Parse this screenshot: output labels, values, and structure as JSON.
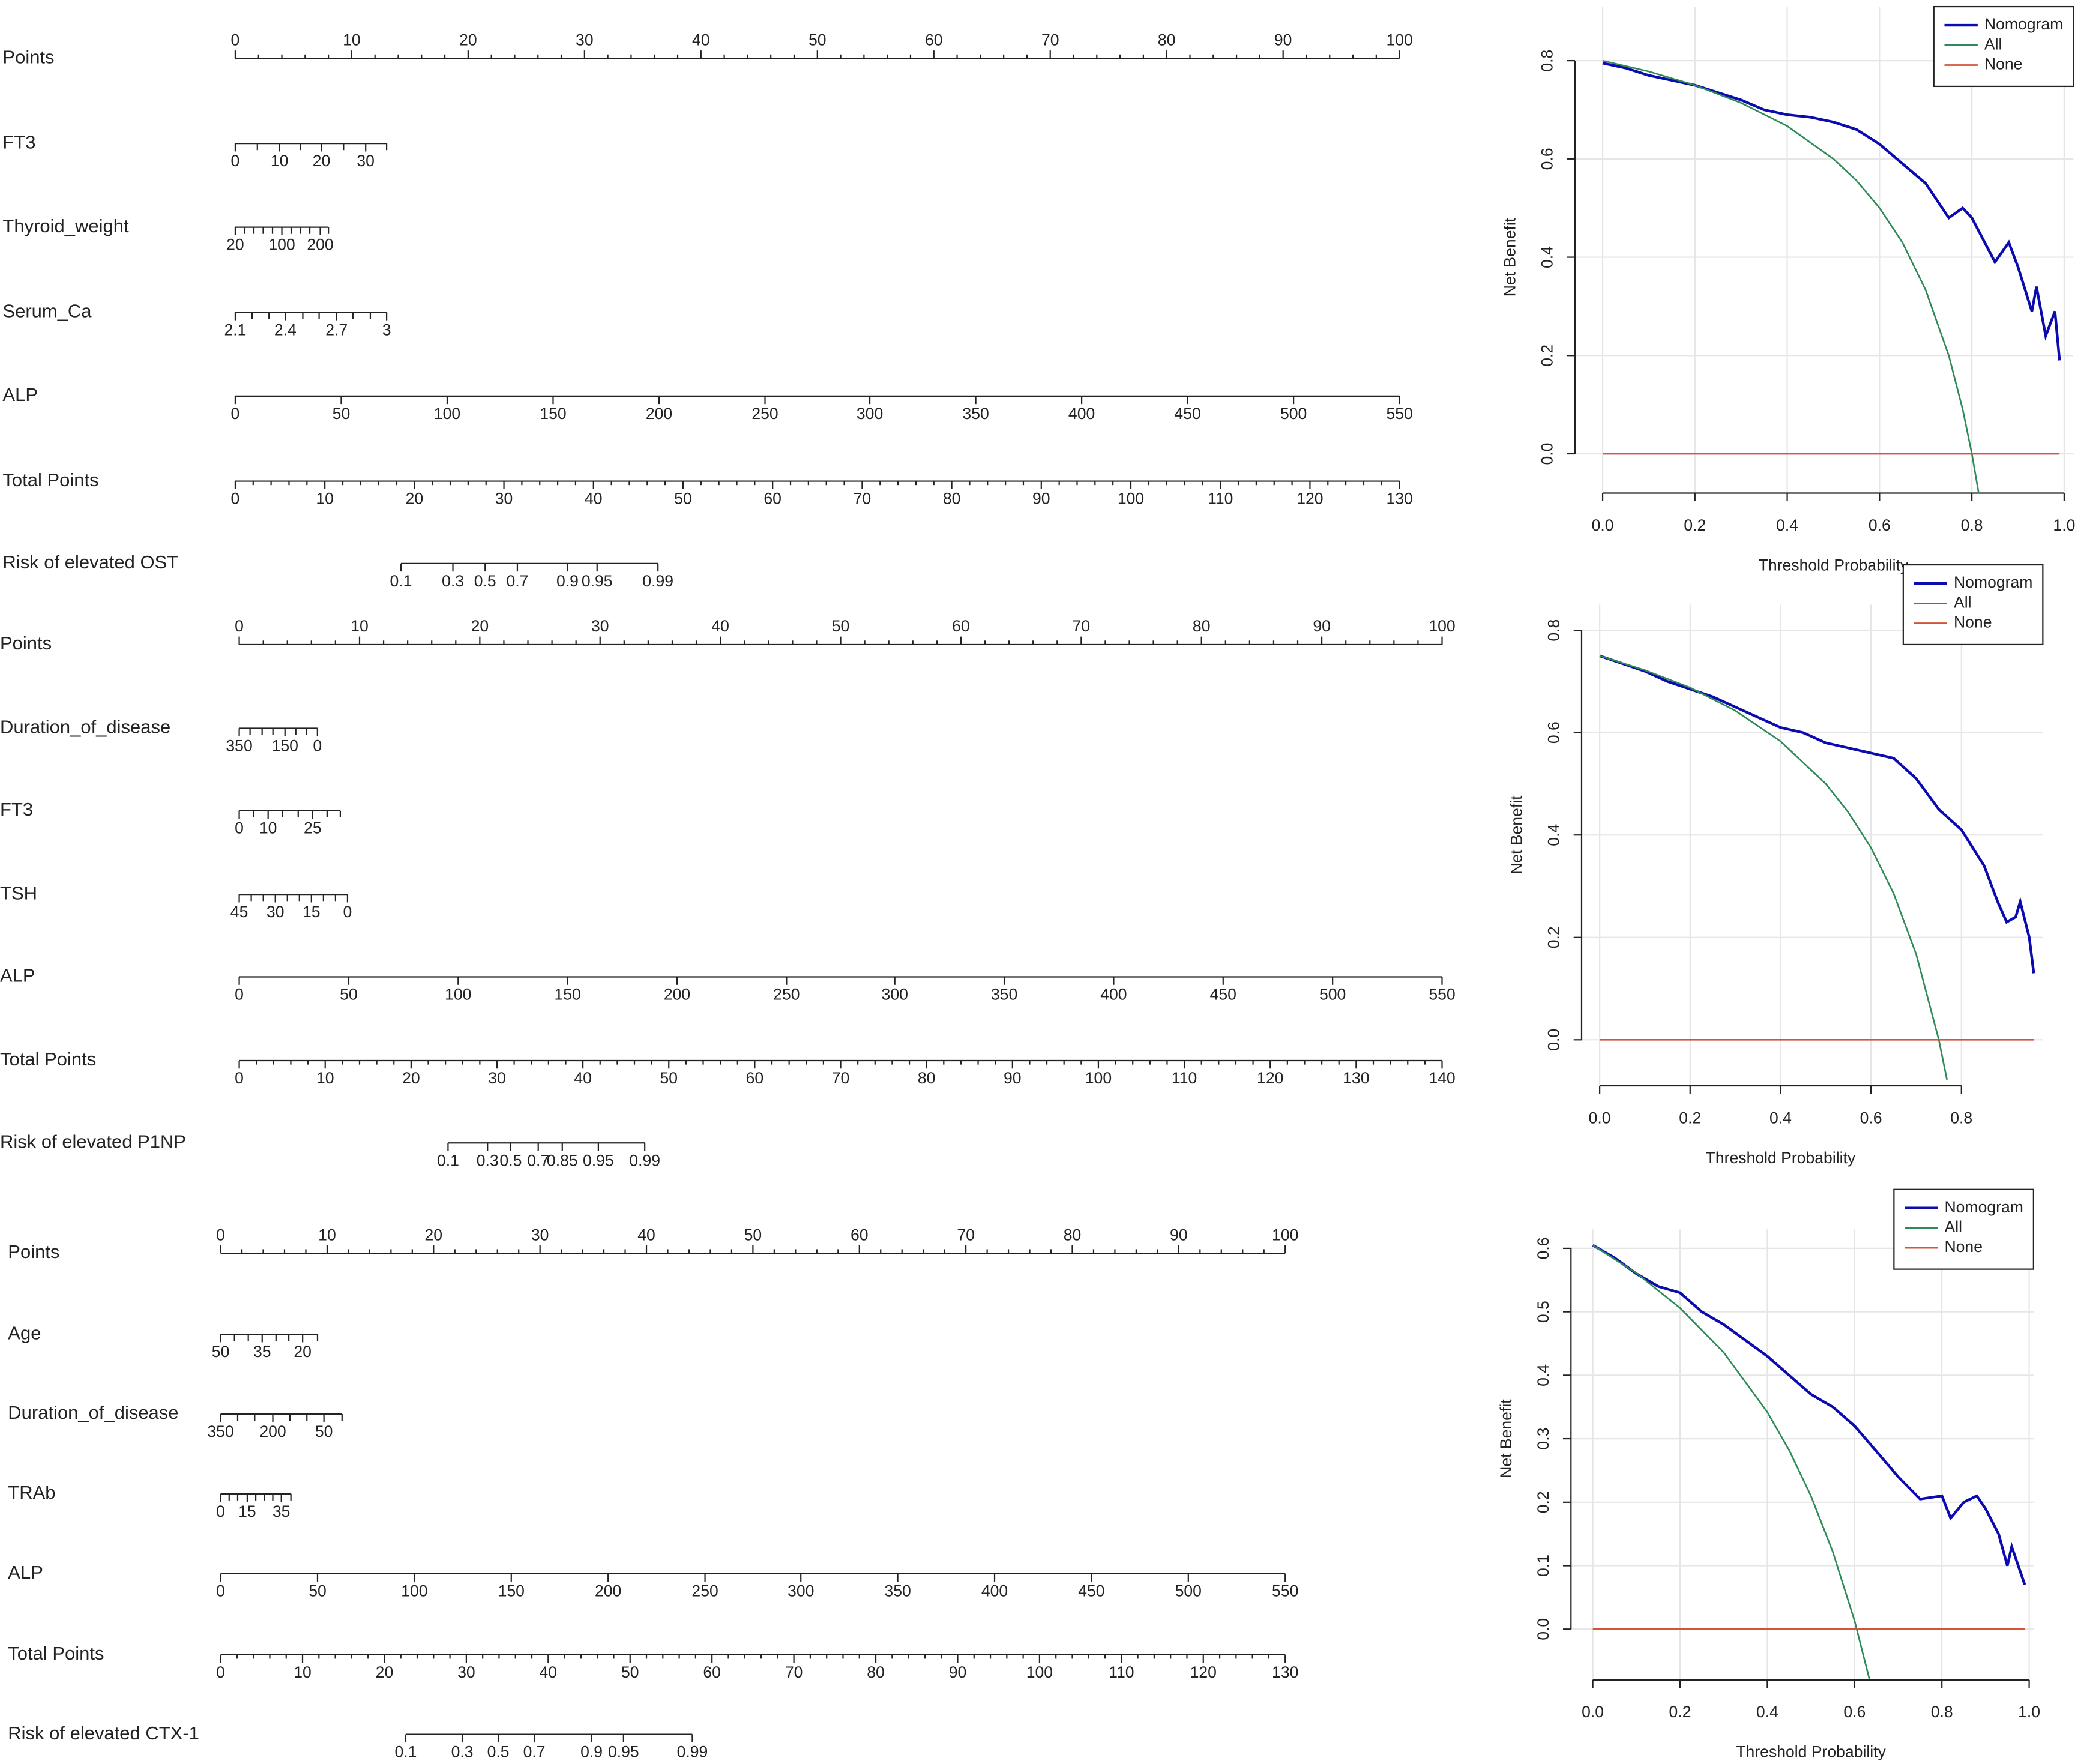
{
  "chart_data": [
    {
      "type": "nomogram",
      "rows": [
        {
          "label": "Points",
          "kind": "points",
          "xlim": [
            0,
            100
          ],
          "xticks": [
            0,
            10,
            20,
            30,
            40,
            50,
            60,
            70,
            80,
            90,
            100
          ],
          "minor_divisions": 5
        },
        {
          "label": "FT3",
          "kind": "variable",
          "ticks": [
            0,
            10,
            20,
            30
          ],
          "at": [
            0,
            3.8,
            7.4,
            11.2
          ],
          "minor_at": [
            1.9,
            5.6,
            9.3,
            13.0
          ]
        },
        {
          "label": "Thyroid_weight",
          "kind": "variable",
          "ticks": [
            20,
            100,
            200
          ],
          "at": [
            0,
            4.0,
            7.3
          ],
          "minor_at": [
            0.8,
            1.6,
            2.4,
            3.2,
            4.8,
            5.6,
            6.4,
            8.0
          ]
        },
        {
          "label": "Serum_Ca",
          "kind": "variable",
          "ticks": [
            2.1,
            2.4,
            2.7,
            3
          ],
          "at": [
            0,
            4.3,
            8.7,
            13.0
          ],
          "minor_at": [
            1.45,
            2.9,
            5.8,
            7.2,
            10.1,
            11.6
          ]
        },
        {
          "label": "ALP",
          "kind": "variable",
          "ticks": [
            0,
            50,
            100,
            150,
            200,
            250,
            300,
            350,
            400,
            450,
            500,
            550
          ],
          "at": [
            0,
            9.1,
            18.2,
            27.3,
            36.4,
            45.5,
            54.5,
            63.6,
            72.7,
            81.8,
            90.9,
            100
          ]
        },
        {
          "label": "Total Points",
          "kind": "total",
          "xlim": [
            0,
            130
          ],
          "xticks": [
            0,
            10,
            20,
            30,
            40,
            50,
            60,
            70,
            80,
            90,
            100,
            110,
            120,
            130
          ],
          "minor_divisions": 5
        },
        {
          "label": "Risk of elevated OST",
          "kind": "risk",
          "ticks": [
            0.1,
            0.3,
            0.5,
            0.7,
            0.9,
            0.95,
            0.99
          ],
          "at": [
            18.5,
            24.3,
            27.9,
            31.5,
            37.1,
            40.4,
            47.2
          ]
        }
      ]
    },
    {
      "type": "line",
      "xlabel": "Threshold Probability",
      "ylabel": "Net Benefit",
      "xlim": [
        -0.06,
        1.02
      ],
      "ylim": [
        -0.08,
        0.91
      ],
      "xticks": [
        {
          "value": 0,
          "label": "0.0"
        },
        0.2,
        0.4,
        0.6,
        0.8,
        {
          "value": 1,
          "label": "1.0"
        }
      ],
      "yticks": [
        {
          "value": 0,
          "label": "0.0"
        },
        0.2,
        0.4,
        0.6,
        0.8
      ],
      "grid": true,
      "legend": "top right",
      "series": [
        {
          "name": "Nomogram",
          "color": "#0b0bb0",
          "x": [
            0,
            0.05,
            0.1,
            0.15,
            0.2,
            0.25,
            0.3,
            0.35,
            0.4,
            0.45,
            0.5,
            0.55,
            0.6,
            0.65,
            0.7,
            0.75,
            0.78,
            0.8,
            0.85,
            0.88,
            0.9,
            0.93,
            0.94,
            0.96,
            0.98,
            0.99
          ],
          "values": [
            0.795,
            0.785,
            0.77,
            0.76,
            0.75,
            0.735,
            0.72,
            0.7,
            0.69,
            0.685,
            0.675,
            0.66,
            0.63,
            0.59,
            0.55,
            0.48,
            0.5,
            0.48,
            0.39,
            0.43,
            0.38,
            0.29,
            0.34,
            0.24,
            0.29,
            0.19
          ]
        },
        {
          "name": "All",
          "color": "#2e8b57",
          "x": [
            0,
            0.1,
            0.2,
            0.3,
            0.4,
            0.5,
            0.55,
            0.6,
            0.65,
            0.7,
            0.75,
            0.78,
            0.8,
            0.815
          ],
          "values": [
            0.8,
            0.778,
            0.75,
            0.714,
            0.667,
            0.6,
            0.556,
            0.5,
            0.429,
            0.333,
            0.2,
            0.091,
            0,
            -0.081
          ]
        },
        {
          "name": "None",
          "color": "#d2553a",
          "x": [
            0,
            0.99
          ],
          "values": [
            0,
            0
          ]
        }
      ]
    },
    {
      "type": "nomogram",
      "rows": [
        {
          "label": "Points",
          "kind": "points",
          "xlim": [
            0,
            100
          ],
          "xticks": [
            0,
            10,
            20,
            30,
            40,
            50,
            60,
            70,
            80,
            90,
            100
          ],
          "minor_divisions": 5
        },
        {
          "label": "Duration_of_disease",
          "kind": "variable",
          "ticks": [
            350,
            150,
            0
          ],
          "at": [
            0,
            3.8,
            6.5
          ],
          "minor_at": [
            0.9,
            1.9,
            2.8,
            4.7,
            5.6
          ]
        },
        {
          "label": "FT3",
          "kind": "variable",
          "ticks": [
            0,
            10,
            25
          ],
          "at": [
            0,
            2.4,
            6.1
          ],
          "minor_at": [
            1.2,
            3.6,
            4.9,
            7.3,
            8.4
          ]
        },
        {
          "label": "TSH",
          "kind": "variable",
          "ticks": [
            45,
            30,
            15,
            0
          ],
          "at": [
            0,
            3.0,
            6.0,
            9.0
          ],
          "minor_at": [
            1,
            2,
            4,
            5,
            7,
            8
          ]
        },
        {
          "label": "ALP",
          "kind": "variable",
          "ticks": [
            0,
            50,
            100,
            150,
            200,
            250,
            300,
            350,
            400,
            450,
            500,
            550
          ],
          "at": [
            0,
            9.1,
            18.2,
            27.3,
            36.4,
            45.5,
            54.5,
            63.6,
            72.7,
            81.8,
            90.9,
            100
          ]
        },
        {
          "label": "Total Points",
          "kind": "total",
          "xlim": [
            0,
            140
          ],
          "xticks": [
            0,
            10,
            20,
            30,
            40,
            50,
            60,
            70,
            80,
            90,
            100,
            110,
            120,
            130,
            140
          ],
          "minor_divisions": 5
        },
        {
          "label": "Risk of elevated P1NP",
          "kind": "risk",
          "ticks": [
            0.1,
            0.3,
            0.5,
            0.7,
            0.85,
            0.95,
            0.99
          ],
          "at": [
            24.3,
            28.9,
            31.6,
            34.8,
            37.6,
            41.8,
            47.2
          ]
        }
      ]
    },
    {
      "type": "line",
      "xlabel": "Threshold Probability",
      "ylabel": "Net Benefit",
      "xlim": [
        -0.04,
        0.98
      ],
      "ylim": [
        -0.09,
        0.85
      ],
      "xticks": [
        {
          "value": 0,
          "label": "0.0"
        },
        0.2,
        0.4,
        0.6,
        0.8
      ],
      "yticks": [
        {
          "value": 0,
          "label": "0.0"
        },
        0.2,
        0.4,
        0.6,
        0.8
      ],
      "grid": true,
      "legend": "top right",
      "series": [
        {
          "name": "Nomogram",
          "color": "#0b0bb0",
          "x": [
            0,
            0.05,
            0.1,
            0.15,
            0.2,
            0.25,
            0.3,
            0.35,
            0.4,
            0.45,
            0.5,
            0.55,
            0.6,
            0.65,
            0.7,
            0.75,
            0.8,
            0.85,
            0.88,
            0.9,
            0.92,
            0.93,
            0.95,
            0.96
          ],
          "values": [
            0.75,
            0.735,
            0.72,
            0.7,
            0.685,
            0.67,
            0.65,
            0.63,
            0.61,
            0.6,
            0.58,
            0.57,
            0.56,
            0.55,
            0.51,
            0.45,
            0.41,
            0.34,
            0.27,
            0.23,
            0.24,
            0.27,
            0.2,
            0.13
          ]
        },
        {
          "name": "All",
          "color": "#2e8b57",
          "x": [
            0,
            0.1,
            0.2,
            0.3,
            0.4,
            0.5,
            0.55,
            0.6,
            0.65,
            0.7,
            0.75,
            0.768
          ],
          "values": [
            0.75,
            0.722,
            0.688,
            0.643,
            0.583,
            0.5,
            0.444,
            0.375,
            0.286,
            0.167,
            0,
            -0.078
          ]
        },
        {
          "name": "None",
          "color": "#d2553a",
          "x": [
            0,
            0.96
          ],
          "values": [
            0,
            0
          ]
        }
      ]
    },
    {
      "type": "nomogram",
      "rows": [
        {
          "label": "Points",
          "kind": "points",
          "xlim": [
            0,
            100
          ],
          "xticks": [
            0,
            10,
            20,
            30,
            40,
            50,
            60,
            70,
            80,
            90,
            100
          ],
          "minor_divisions": 5
        },
        {
          "label": "Age",
          "kind": "variable",
          "ticks": [
            50,
            35,
            20
          ],
          "at": [
            0,
            3.9,
            7.7
          ],
          "minor_at": [
            1.3,
            2.6,
            5.2,
            6.4,
            9.1
          ]
        },
        {
          "label": "Duration_of_disease",
          "kind": "variable",
          "ticks": [
            350,
            200,
            50
          ],
          "at": [
            0,
            4.9,
            9.7
          ],
          "minor_at": [
            1.6,
            3.2,
            6.5,
            8.1,
            11.4
          ]
        },
        {
          "label": "TRAb",
          "kind": "variable",
          "ticks": [
            0,
            15,
            35
          ],
          "at": [
            0,
            2.5,
            5.7
          ],
          "minor_at": [
            0.8,
            1.6,
            3.3,
            4.1,
            4.9,
            6.6
          ]
        },
        {
          "label": "ALP",
          "kind": "variable",
          "ticks": [
            0,
            50,
            100,
            150,
            200,
            250,
            300,
            350,
            400,
            450,
            500,
            550
          ],
          "at": [
            0,
            9.1,
            18.2,
            27.3,
            36.4,
            45.5,
            54.5,
            63.6,
            72.7,
            81.8,
            90.9,
            100
          ]
        },
        {
          "label": "Total Points",
          "kind": "total",
          "xlim": [
            0,
            130
          ],
          "xticks": [
            0,
            10,
            20,
            30,
            40,
            50,
            60,
            70,
            80,
            90,
            100,
            110,
            120,
            130
          ],
          "minor_divisions": 5
        },
        {
          "label": "Risk of elevated CTX-1",
          "kind": "risk",
          "ticks": [
            0.1,
            0.3,
            0.5,
            0.7,
            0.9,
            0.95,
            0.99
          ],
          "at": [
            22.6,
            29.5,
            33.9,
            38.3,
            45.3,
            49.2,
            57.6
          ]
        }
      ]
    },
    {
      "type": "line",
      "xlabel": "Threshold Probability",
      "ylabel": "Net Benefit",
      "xlim": [
        -0.05,
        1.01
      ],
      "ylim": [
        -0.08,
        0.63
      ],
      "xticks": [
        {
          "value": 0,
          "label": "0.0"
        },
        0.2,
        0.4,
        0.6,
        0.8,
        {
          "value": 1,
          "label": "1.0"
        }
      ],
      "yticks": [
        {
          "value": 0,
          "label": "0.0"
        },
        0.1,
        0.2,
        0.3,
        0.4,
        0.5,
        0.6
      ],
      "grid": true,
      "legend": "top right",
      "series": [
        {
          "name": "Nomogram",
          "color": "#0b0bb0",
          "x": [
            0,
            0.05,
            0.1,
            0.15,
            0.2,
            0.25,
            0.3,
            0.35,
            0.4,
            0.45,
            0.5,
            0.55,
            0.6,
            0.65,
            0.7,
            0.75,
            0.8,
            0.82,
            0.85,
            0.88,
            0.9,
            0.93,
            0.95,
            0.96,
            0.99
          ],
          "values": [
            0.605,
            0.585,
            0.56,
            0.54,
            0.53,
            0.5,
            0.48,
            0.455,
            0.43,
            0.4,
            0.37,
            0.35,
            0.32,
            0.28,
            0.24,
            0.205,
            0.21,
            0.175,
            0.2,
            0.21,
            0.19,
            0.15,
            0.1,
            0.13,
            0.07
          ]
        },
        {
          "name": "All",
          "color": "#2e8b57",
          "x": [
            0,
            0.1,
            0.2,
            0.3,
            0.4,
            0.45,
            0.5,
            0.55,
            0.6,
            0.634
          ],
          "values": [
            0.605,
            0.561,
            0.506,
            0.436,
            0.342,
            0.282,
            0.21,
            0.122,
            0.013,
            -0.079
          ]
        },
        {
          "name": "None",
          "color": "#d2553a",
          "x": [
            0,
            0.99
          ],
          "values": [
            0,
            0
          ]
        }
      ]
    }
  ]
}
